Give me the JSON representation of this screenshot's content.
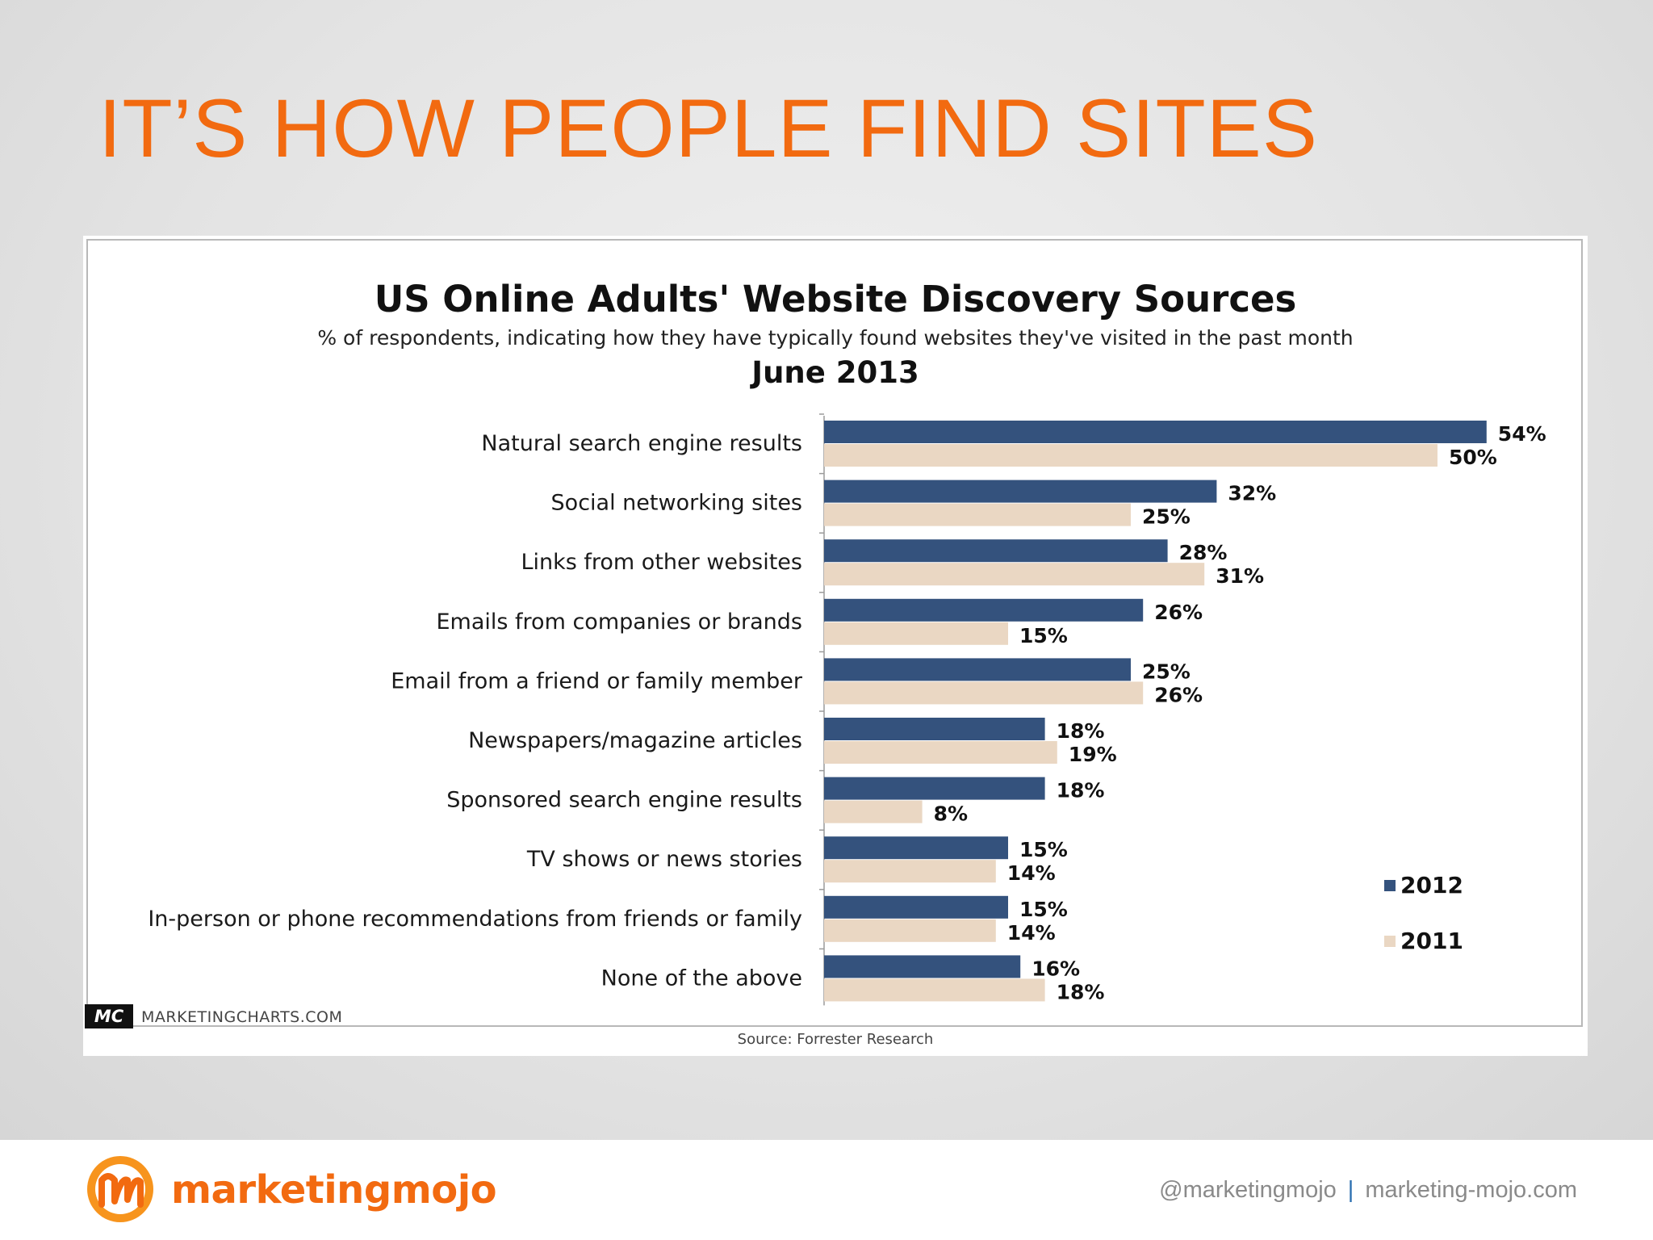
{
  "slide": {
    "title": "IT’S HOW PEOPLE FIND SITES",
    "accent_color": "#f26a10"
  },
  "chart_data": {
    "type": "bar",
    "orientation": "horizontal",
    "title": "US Online Adults' Website Discovery Sources",
    "subtitle": "% of respondents, indicating how they have typically found websites they've visited in the past month",
    "date": "June 2013",
    "categories": [
      "Natural search engine results",
      "Social networking sites",
      "Links from other websites",
      "Emails from companies or brands",
      "Email from a friend or family member",
      "Newspapers/magazine articles",
      "Sponsored search engine results",
      "TV shows or news stories",
      "In-person or phone recommendations from friends or family",
      "None of the above"
    ],
    "series": [
      {
        "name": "2012",
        "color": "#34527d",
        "values": [
          54,
          32,
          28,
          26,
          25,
          18,
          18,
          15,
          15,
          16
        ]
      },
      {
        "name": "2011",
        "color": "#ead7c3",
        "values": [
          50,
          25,
          31,
          15,
          26,
          19,
          8,
          14,
          14,
          18
        ]
      }
    ],
    "value_suffix": "%",
    "xlim": [
      0,
      54
    ],
    "grid": false,
    "legend_position": "right",
    "source": "Source: Forrester Research",
    "brand_badge": "MC",
    "brand_site": "MARKETINGCHARTS.COM"
  },
  "footer": {
    "brand_name": "marketingmojo",
    "handle": "@marketingmojo",
    "separator": "|",
    "website": "marketing-mojo.com"
  }
}
